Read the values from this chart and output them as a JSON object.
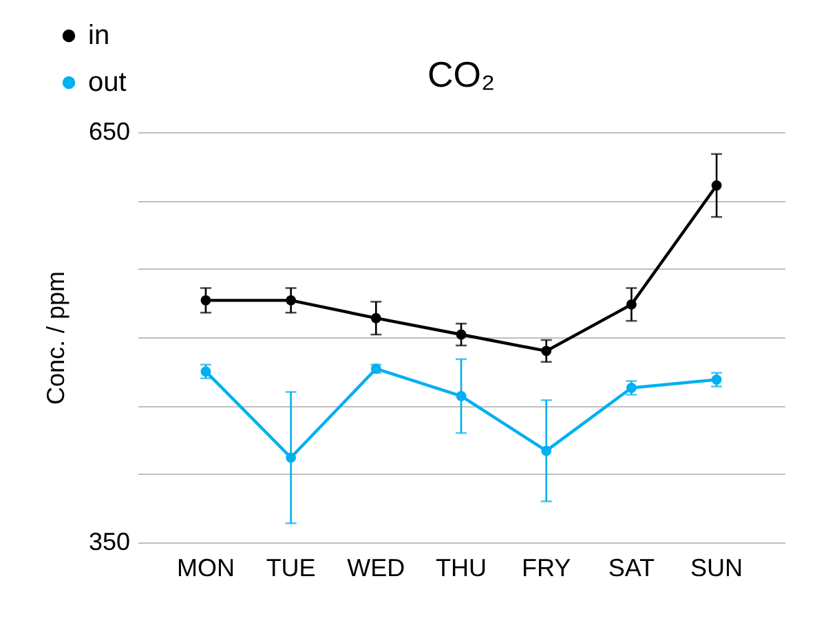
{
  "chart_data": {
    "type": "line",
    "title": "CO₂",
    "ylabel": "Conc. / ppm",
    "categories": [
      "MON",
      "TUE",
      "WED",
      "THU",
      "FRY",
      "SAT",
      "SUN"
    ],
    "series": [
      {
        "name": "in",
        "color": "#000000",
        "values": [
          527,
          527,
          514,
          502,
          490,
          524,
          611
        ],
        "errors": [
          9,
          9,
          12,
          8,
          8,
          12,
          23
        ]
      },
      {
        "name": "out",
        "color": "#00b0f0",
        "values": [
          475,
          412,
          477,
          457,
          417,
          463,
          469
        ],
        "errors": [
          5,
          48,
          3,
          27,
          37,
          5,
          5
        ]
      }
    ],
    "ylim": [
      350,
      650
    ],
    "yticks": [
      350,
      {
        "value": 400,
        "label": null
      },
      {
        "value": 450,
        "label": null
      },
      {
        "value": 500,
        "label": null
      },
      {
        "value": 550,
        "label": null
      },
      {
        "value": 600,
        "label": null
      },
      650
    ],
    "grid": "y",
    "legend": "top left",
    "marker": "circle",
    "line_style": "solid"
  }
}
